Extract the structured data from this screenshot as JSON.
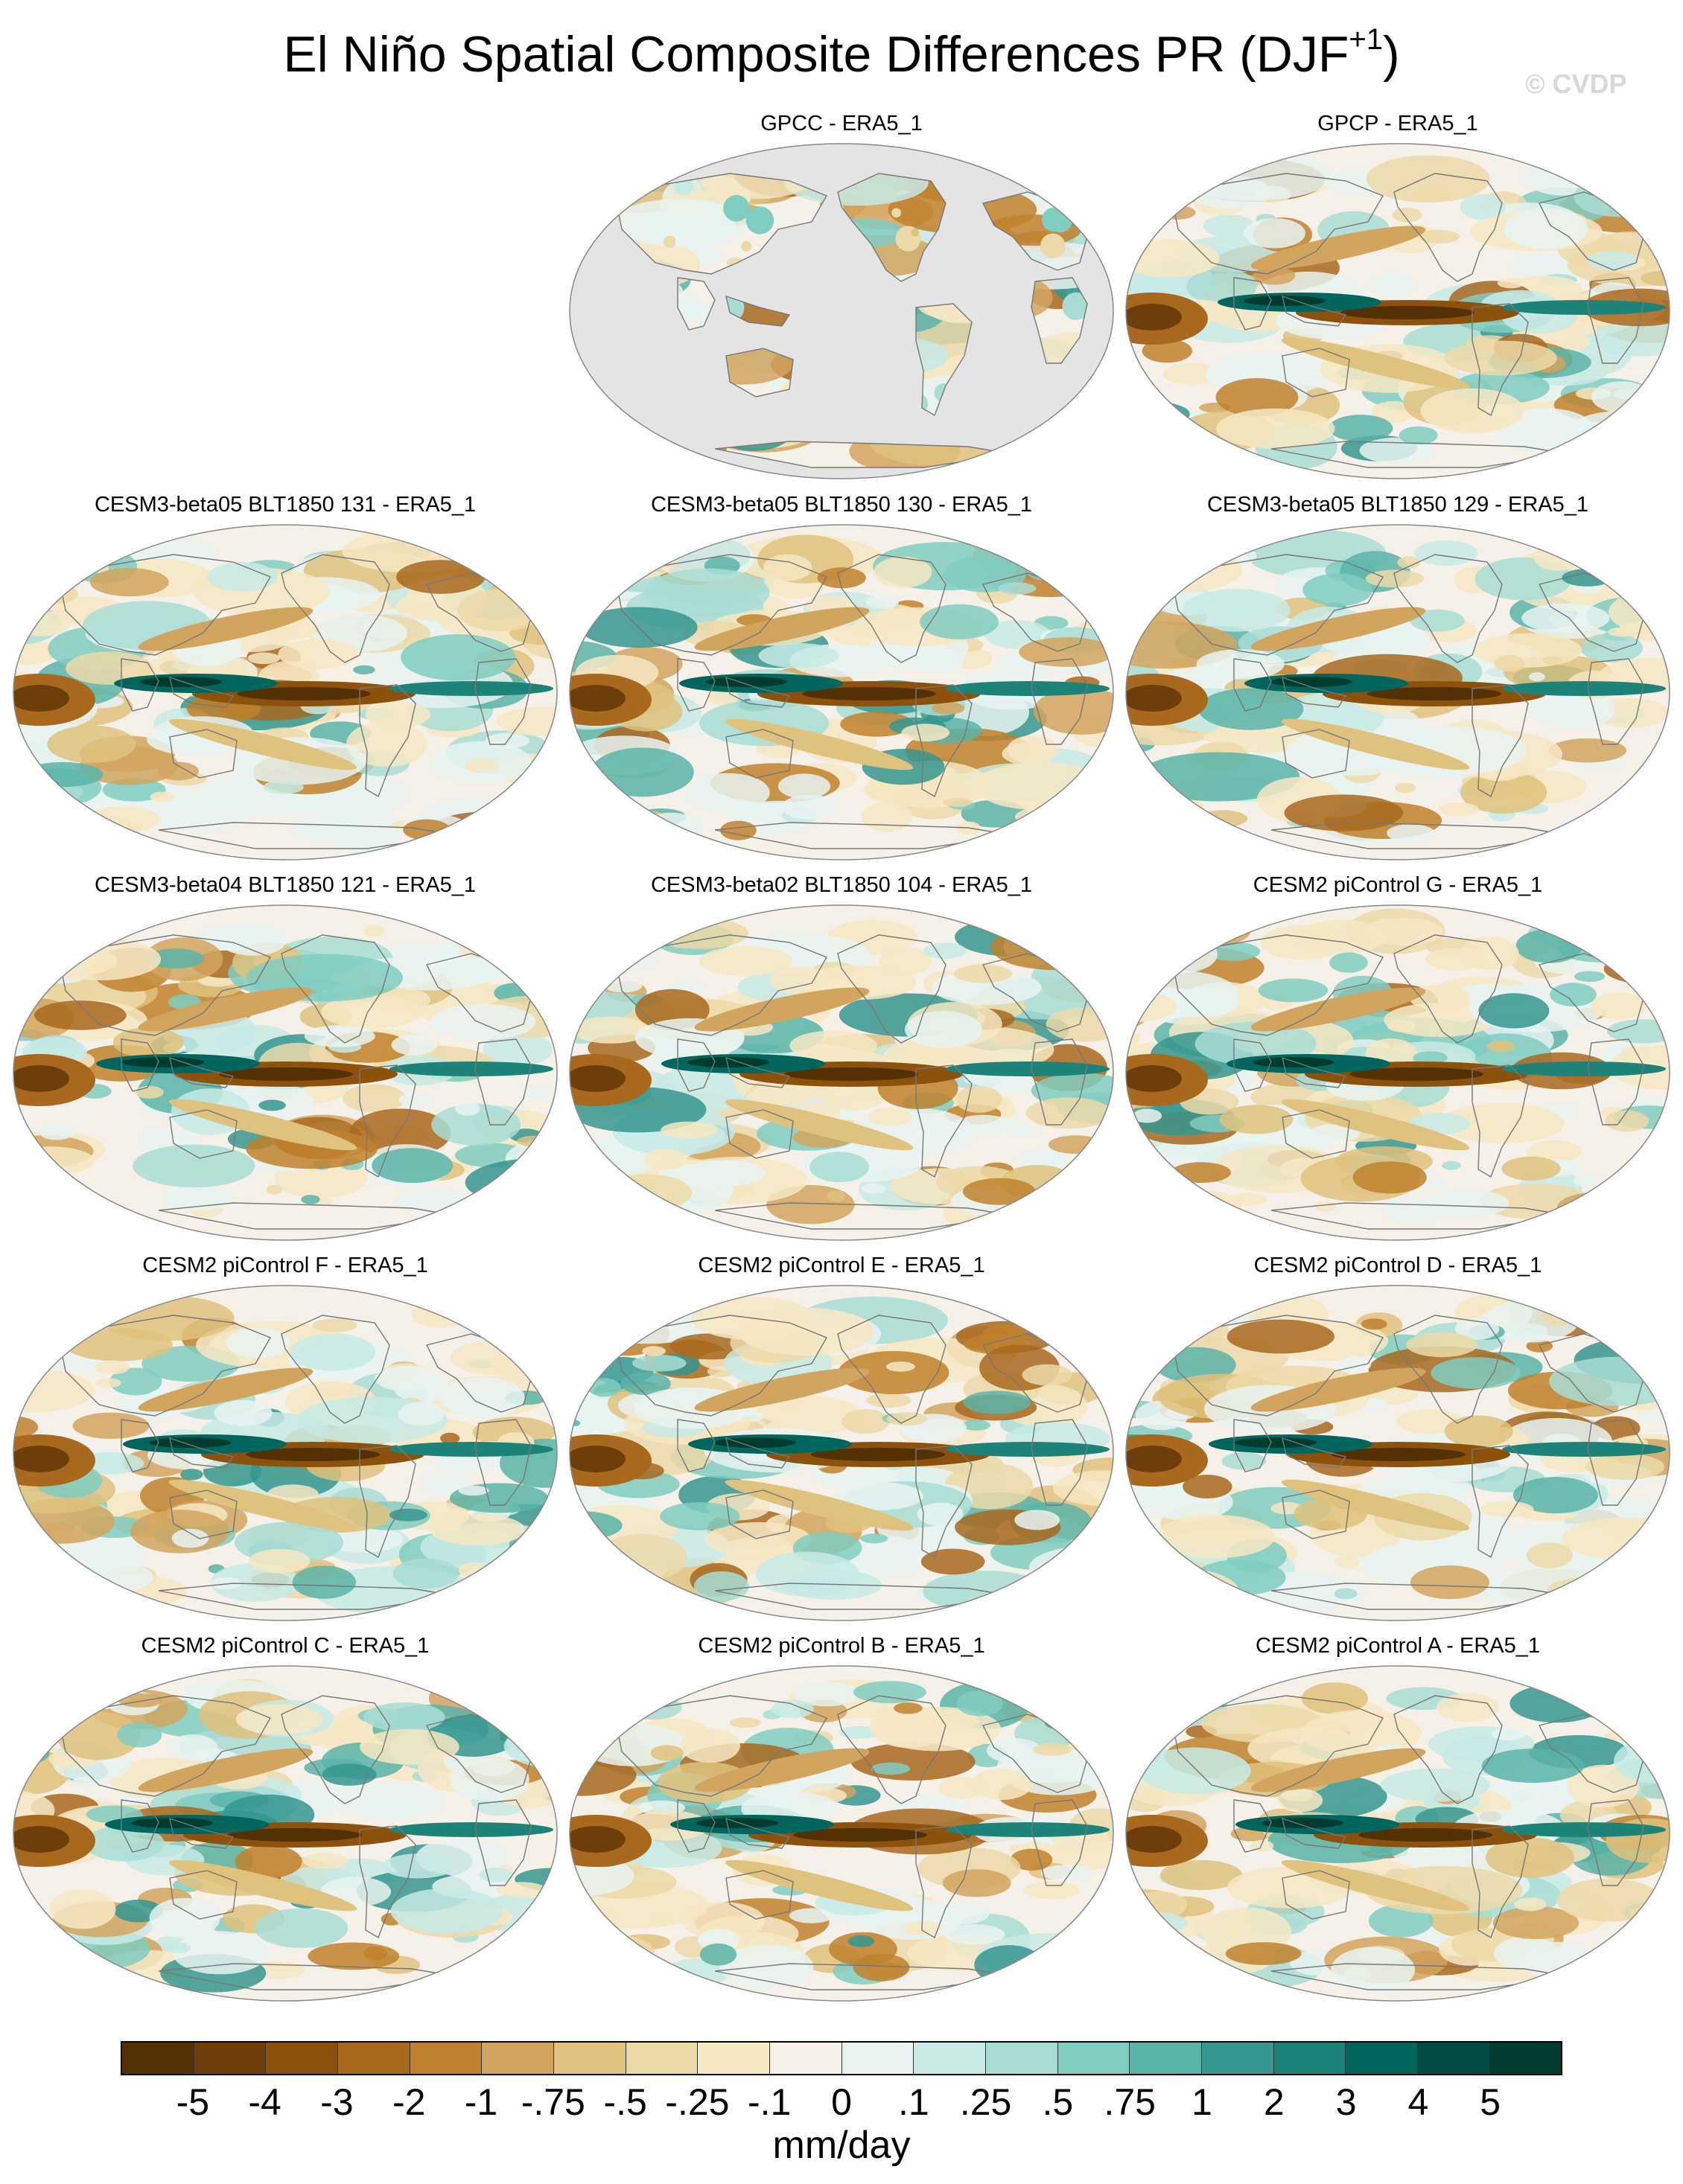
{
  "title": {
    "main": "El Niño Spatial Composite Differences PR (DJF",
    "superscript": "+1",
    "close": ")"
  },
  "watermark": "© CVDP",
  "panels": [
    {
      "label": "GPCC - ERA5_1",
      "coverage": "land"
    },
    {
      "label": "GPCP - ERA5_1",
      "coverage": "global"
    },
    {
      "label": "CESM3-beta05 BLT1850 131 - ERA5_1",
      "coverage": "global"
    },
    {
      "label": "CESM3-beta05 BLT1850 130 - ERA5_1",
      "coverage": "global"
    },
    {
      "label": "CESM3-beta05 BLT1850 129 - ERA5_1",
      "coverage": "global"
    },
    {
      "label": "CESM3-beta04 BLT1850 121 - ERA5_1",
      "coverage": "global"
    },
    {
      "label": "CESM3-beta02 BLT1850 104 - ERA5_1",
      "coverage": "global"
    },
    {
      "label": "CESM2 piControl G - ERA5_1",
      "coverage": "global"
    },
    {
      "label": "CESM2 piControl F - ERA5_1",
      "coverage": "global"
    },
    {
      "label": "CESM2 piControl E - ERA5_1",
      "coverage": "global"
    },
    {
      "label": "CESM2 piControl D - ERA5_1",
      "coverage": "global"
    },
    {
      "label": "CESM2 piControl C - ERA5_1",
      "coverage": "global"
    },
    {
      "label": "CESM2 piControl B - ERA5_1",
      "coverage": "global"
    },
    {
      "label": "CESM2 piControl A - ERA5_1",
      "coverage": "global"
    }
  ],
  "colorbar": {
    "units": "mm/day",
    "tick_labels": [
      "-5",
      "-4",
      "-3",
      "-2",
      "-1",
      "-.75",
      "-.5",
      "-.25",
      "-.1",
      "0",
      ".1",
      ".25",
      ".5",
      ".75",
      "1",
      "2",
      "3",
      "4",
      "5"
    ],
    "colors": [
      "#543005",
      "#6e3e0a",
      "#8c510a",
      "#a8681e",
      "#bf812d",
      "#d2a55e",
      "#dfc27d",
      "#ecd9a8",
      "#f6e8c3",
      "#f5f1e8",
      "#e8f3f1",
      "#c7eae5",
      "#a8ddd5",
      "#80cdc1",
      "#5ab4a8",
      "#35978f",
      "#1d8379",
      "#01665e",
      "#014d44",
      "#003c30"
    ]
  },
  "map_style": {
    "land_mask": "#e4e4e4",
    "coastline": "#777777",
    "frame": "#888888"
  }
}
